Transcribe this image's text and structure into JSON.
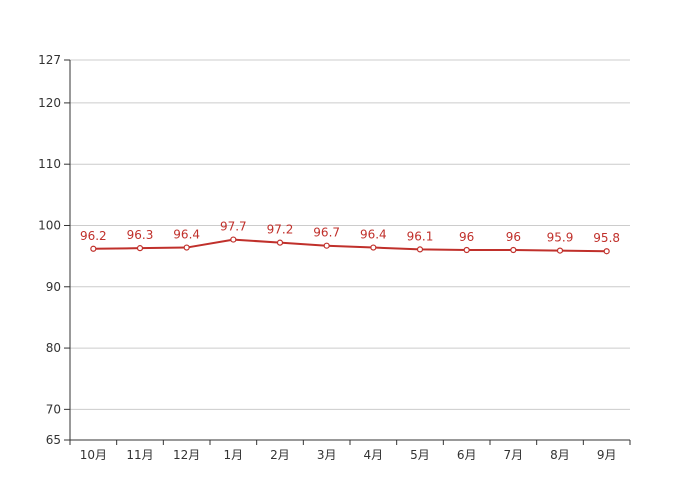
{
  "chart_data": {
    "type": "line",
    "categories": [
      "10月",
      "11月",
      "12月",
      "1月",
      "2月",
      "3月",
      "4月",
      "5月",
      "6月",
      "7月",
      "8月",
      "9月"
    ],
    "series": [
      {
        "values": [
          96.2,
          96.3,
          96.4,
          97.7,
          97.2,
          96.7,
          96.4,
          96.1,
          96,
          96,
          95.9,
          95.8
        ],
        "data_labels": [
          "96.2",
          "96.3",
          "96.4",
          "97.7",
          "97.2",
          "96.7",
          "96.4",
          "96.1",
          "96",
          "96",
          "95.9",
          "95.8"
        ],
        "color": "#c0302b"
      }
    ],
    "y_ticks": [
      65,
      70,
      80,
      90,
      100,
      110,
      120,
      127
    ],
    "ylim": [
      65,
      127
    ],
    "grid": true,
    "legend": "none",
    "colors": {
      "line": "#c0302b",
      "label": "#c0302b",
      "grid": "#cccccc",
      "axis": "#333333",
      "tick_text": "#333333",
      "marker_fill": "#ffffff"
    }
  }
}
